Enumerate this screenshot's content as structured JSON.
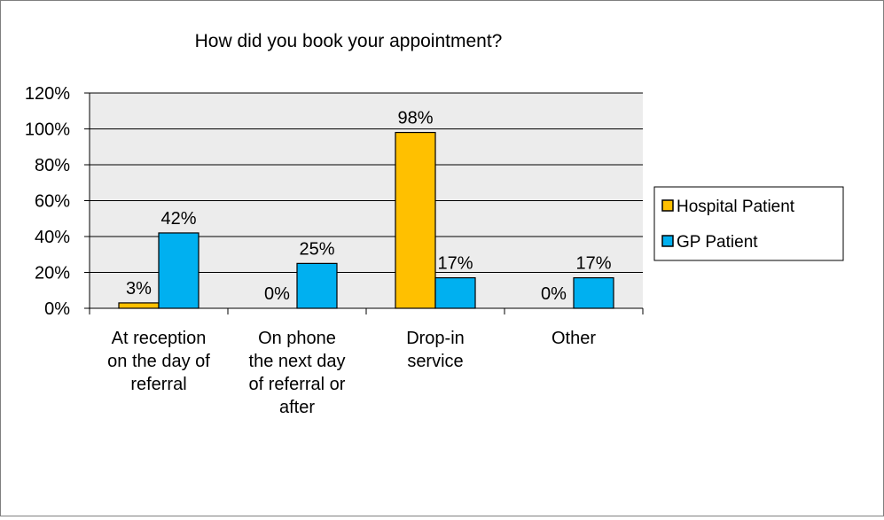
{
  "chart_data": {
    "type": "bar",
    "title": "How did you book your appointment?",
    "categories": [
      [
        "At reception",
        "on the day of",
        "referral"
      ],
      [
        "On phone",
        "the next day",
        "of referral or",
        "after"
      ],
      [
        "Drop-in",
        "service"
      ],
      [
        "Other"
      ]
    ],
    "series": [
      {
        "name": "Hospital Patient",
        "color": "#ffc000",
        "values": [
          3,
          0,
          98,
          0
        ],
        "labels": [
          "3%",
          "0%",
          "98%",
          "0%"
        ]
      },
      {
        "name": "GP Patient",
        "color": "#00b0f0",
        "values": [
          42,
          25,
          17,
          17
        ],
        "labels": [
          "42%",
          "25%",
          "17%",
          "17%"
        ]
      }
    ],
    "ylim": [
      0,
      120
    ],
    "yticks": [
      0,
      20,
      40,
      60,
      80,
      100,
      120
    ],
    "ytick_labels": [
      "0%",
      "20%",
      "40%",
      "60%",
      "80%",
      "100%",
      "120%"
    ],
    "plot_background": "#ececec",
    "gridlines": true,
    "legend_position": "right"
  }
}
